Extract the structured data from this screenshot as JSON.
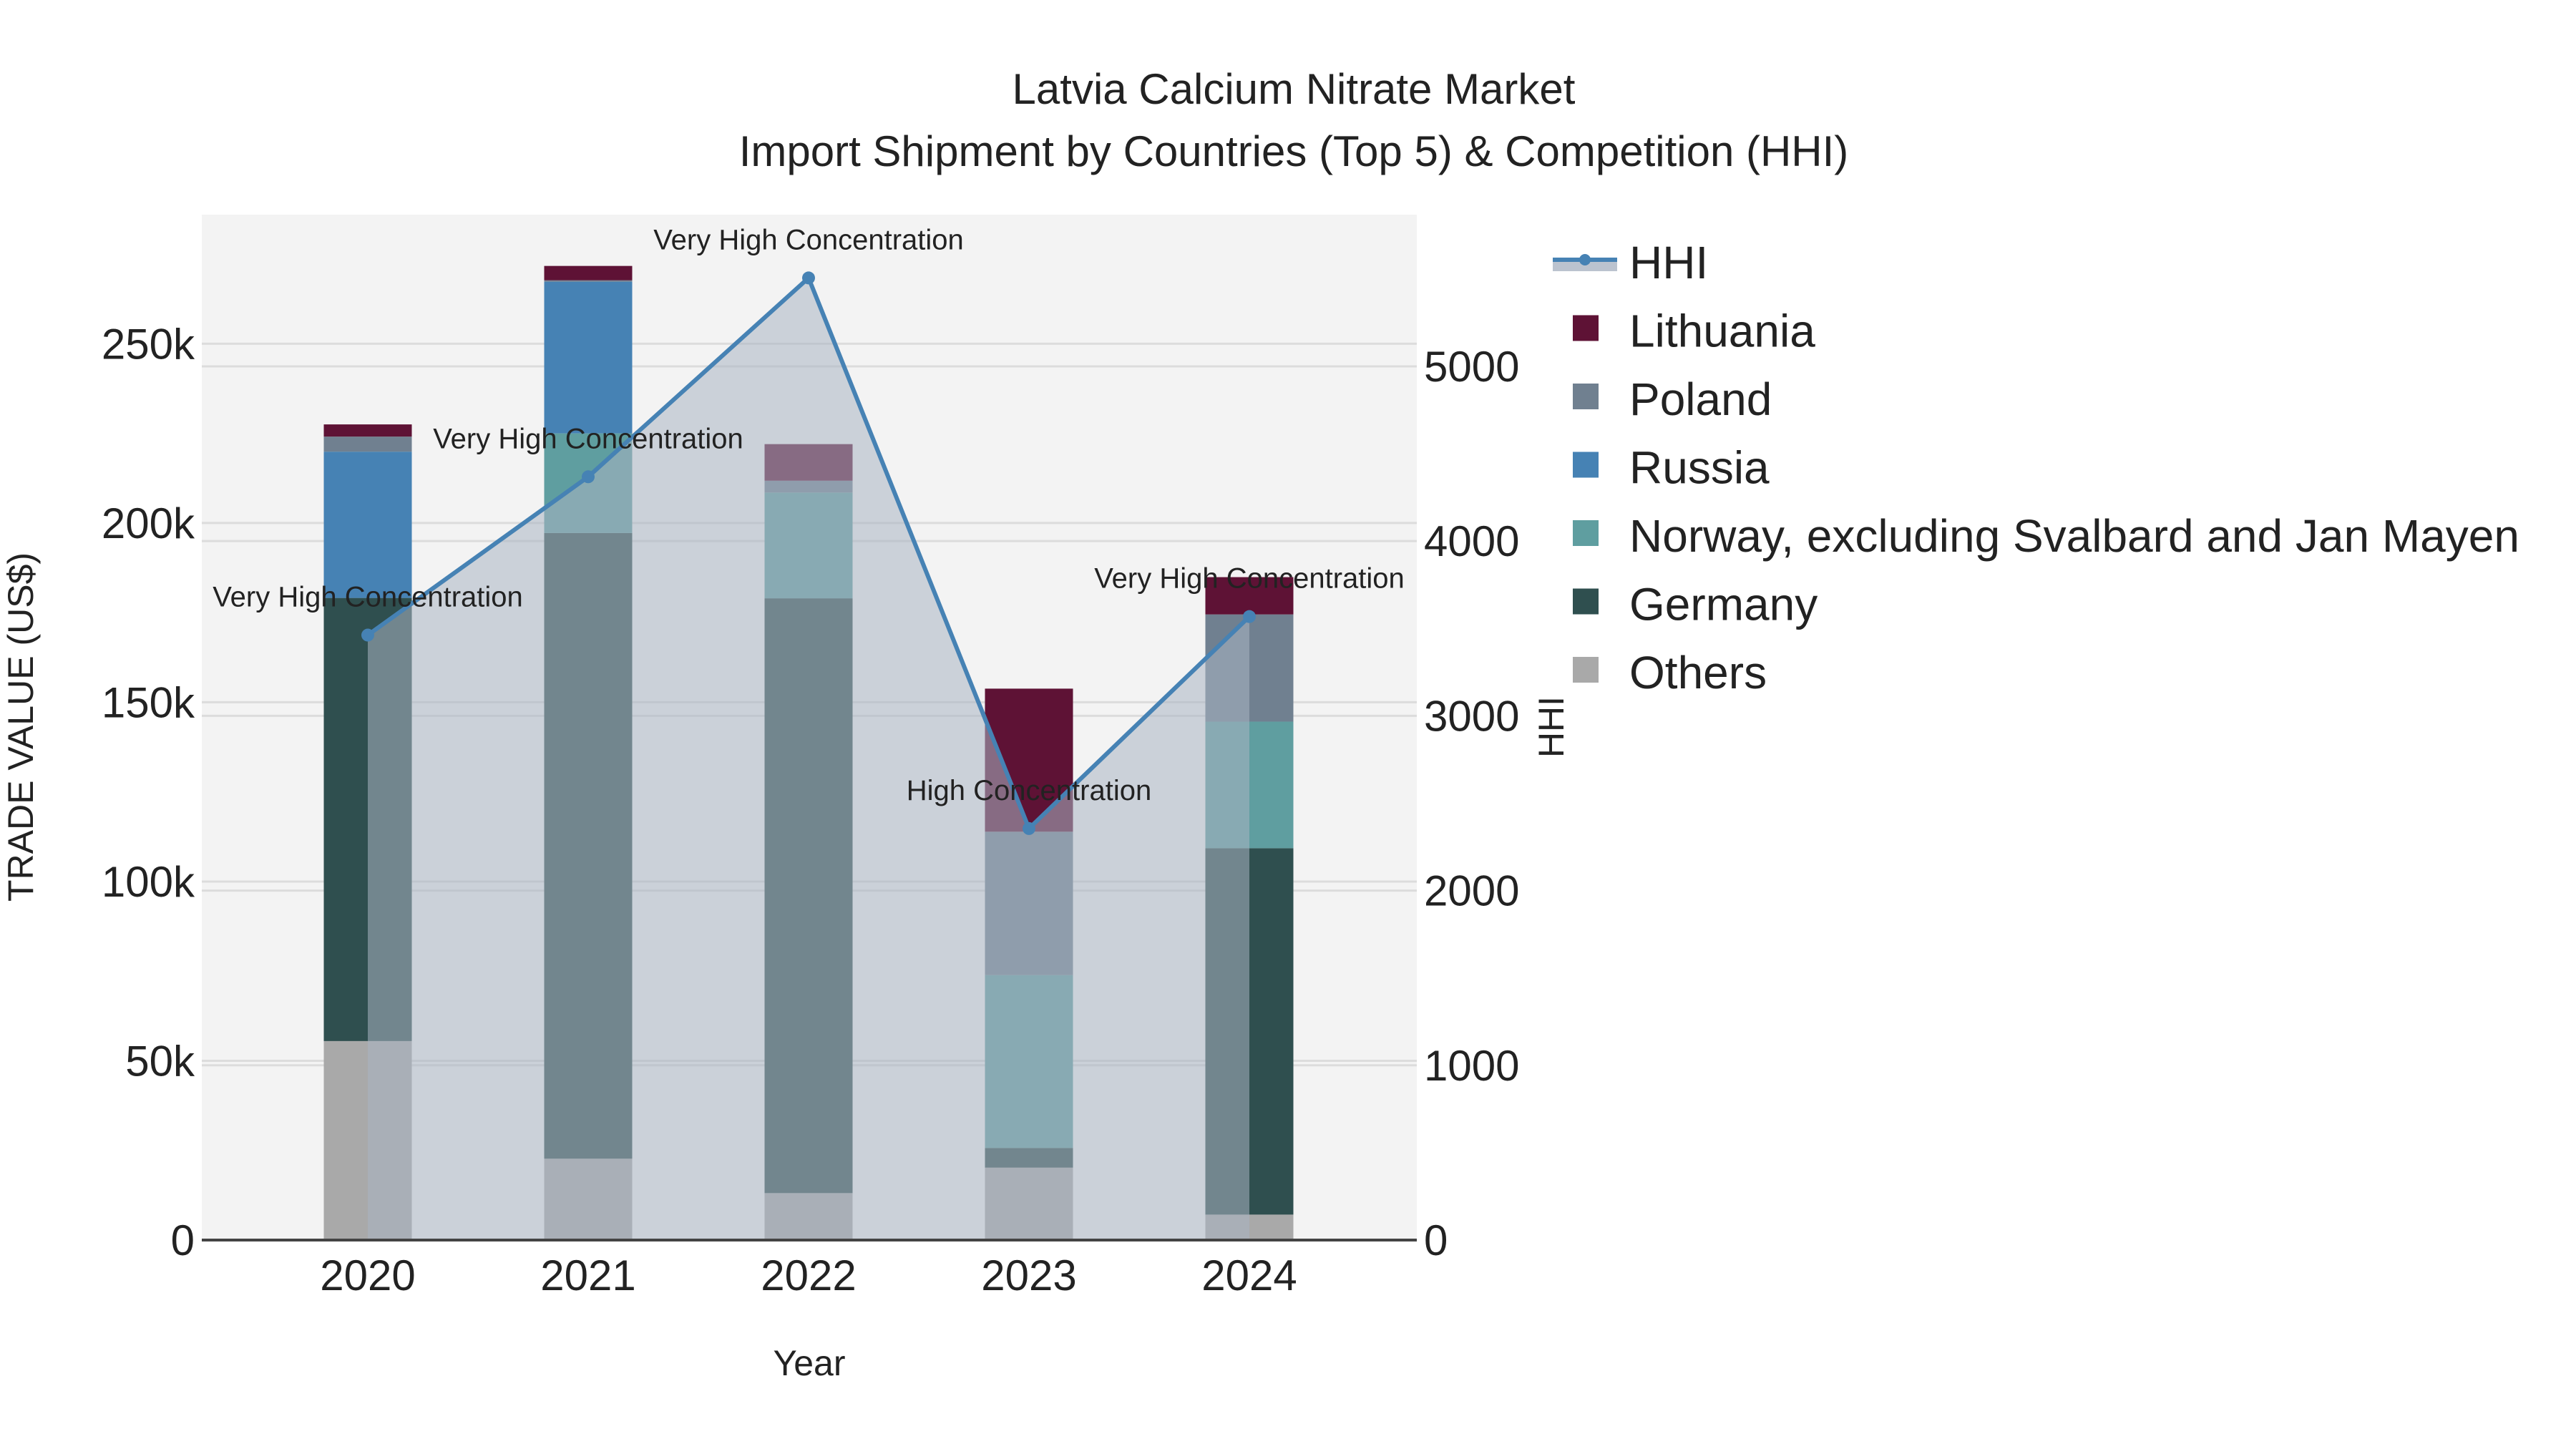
{
  "chart_data": {
    "type": "bar",
    "title": "Latvia Calcium Nitrate Market",
    "subtitle": "Import Shipment by Countries (Top 5) & Competition (HHI)",
    "xlabel": "Year",
    "ylabel": "TRADE VALUE (US$)",
    "y2label": "HHI",
    "categories": [
      "2020",
      "2021",
      "2022",
      "2023",
      "2024"
    ],
    "ylim": [
      0,
      286000
    ],
    "y2lim": [
      0,
      5868
    ],
    "yticks": [
      0,
      50000,
      100000,
      150000,
      200000,
      250000
    ],
    "ytick_labels": [
      "0",
      "50k",
      "100k",
      "150k",
      "200k",
      "250k"
    ],
    "y2ticks": [
      0,
      1000,
      2000,
      3000,
      4000,
      5000
    ],
    "y2tick_labels": [
      "0",
      "1000",
      "2000",
      "3000",
      "4000",
      "5000"
    ],
    "stacked": true,
    "series": [
      {
        "name": "Others",
        "color": "#a9a9a9",
        "values": [
          55500,
          22700,
          13100,
          20200,
          7100
        ]
      },
      {
        "name": "Germany",
        "color": "#2f4f4f",
        "values": [
          123600,
          174500,
          165900,
          5500,
          102200
        ]
      },
      {
        "name": "Norway, excluding Svalbard and Jan Mayen",
        "color": "#5f9ea0",
        "values": [
          0,
          27800,
          29500,
          48200,
          35300
        ]
      },
      {
        "name": "Russia",
        "color": "#4682b4",
        "values": [
          40800,
          42300,
          0,
          0,
          0
        ]
      },
      {
        "name": "Poland",
        "color": "#708090",
        "values": [
          4200,
          400,
          3300,
          40000,
          29900
        ]
      },
      {
        "name": "Lithuania",
        "color": "#5e1235",
        "values": [
          3400,
          4000,
          10200,
          39900,
          10400
        ]
      }
    ],
    "hhi": {
      "name": "HHI",
      "color": "#4682b4",
      "values": [
        3462,
        4368,
        5506,
        2355,
        3568
      ],
      "annotations": [
        "Very High Concentration",
        "Very High Concentration",
        "Very High Concentration",
        "High Concentration",
        "Very High Concentration"
      ]
    },
    "legend": [
      "HHI",
      "Lithuania",
      "Poland",
      "Russia",
      "Norway, excluding Svalbard and Jan Mayen",
      "Germany",
      "Others"
    ],
    "legend_position": "right",
    "grid": true
  }
}
